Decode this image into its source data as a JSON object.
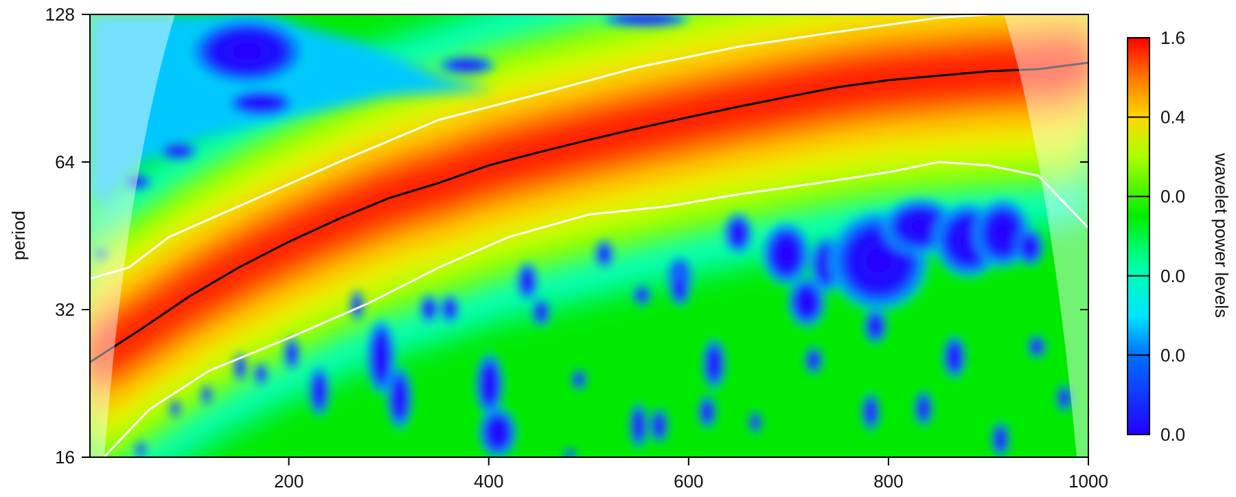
{
  "chart_data": {
    "type": "heatmap",
    "title": "",
    "xlabel": "",
    "ylabel": "period",
    "xlim": [
      1,
      1000
    ],
    "ylim": [
      16,
      128
    ],
    "y_scale": "log2",
    "x_ticks": [
      200,
      400,
      600,
      800,
      1000
    ],
    "y_ticks": [
      16,
      32,
      64,
      128
    ],
    "ridge": {
      "x": [
        1,
        50,
        100,
        150,
        200,
        250,
        300,
        350,
        400,
        450,
        500,
        550,
        600,
        650,
        700,
        750,
        800,
        850,
        900,
        950,
        1000
      ],
      "period": [
        25,
        29,
        34,
        39,
        44,
        49,
        54,
        58,
        63,
        67,
        71,
        75,
        79,
        83,
        87,
        91,
        94,
        96,
        98,
        99,
        102
      ]
    },
    "significance_contours": {
      "upper": {
        "x": [
          1,
          40,
          80,
          150,
          250,
          350,
          450,
          550,
          650,
          750,
          850,
          900
        ],
        "period": [
          37,
          39,
          45,
          52,
          64,
          78,
          88,
          100,
          110,
          118,
          126,
          128
        ]
      },
      "lower": {
        "x": [
          15,
          60,
          120,
          200,
          280,
          350,
          420,
          500,
          580,
          650,
          730,
          800,
          850,
          900,
          950,
          1000
        ],
        "period": [
          16,
          20,
          24,
          28,
          33,
          39,
          45,
          50,
          52,
          55,
          58,
          61,
          64,
          63,
          60,
          47
        ]
      }
    },
    "colorbar": {
      "label": "wavelet power levels",
      "tick_labels": [
        "1.6",
        "0.4",
        "0.0",
        "0.0",
        "0.0",
        "0.0"
      ],
      "colors": [
        "#ff0000",
        "#ffd700",
        "#00ee00",
        "#00ffcc",
        "#0070ff",
        "#2200ff"
      ]
    },
    "grid": false,
    "legend": "colorbar-right"
  }
}
